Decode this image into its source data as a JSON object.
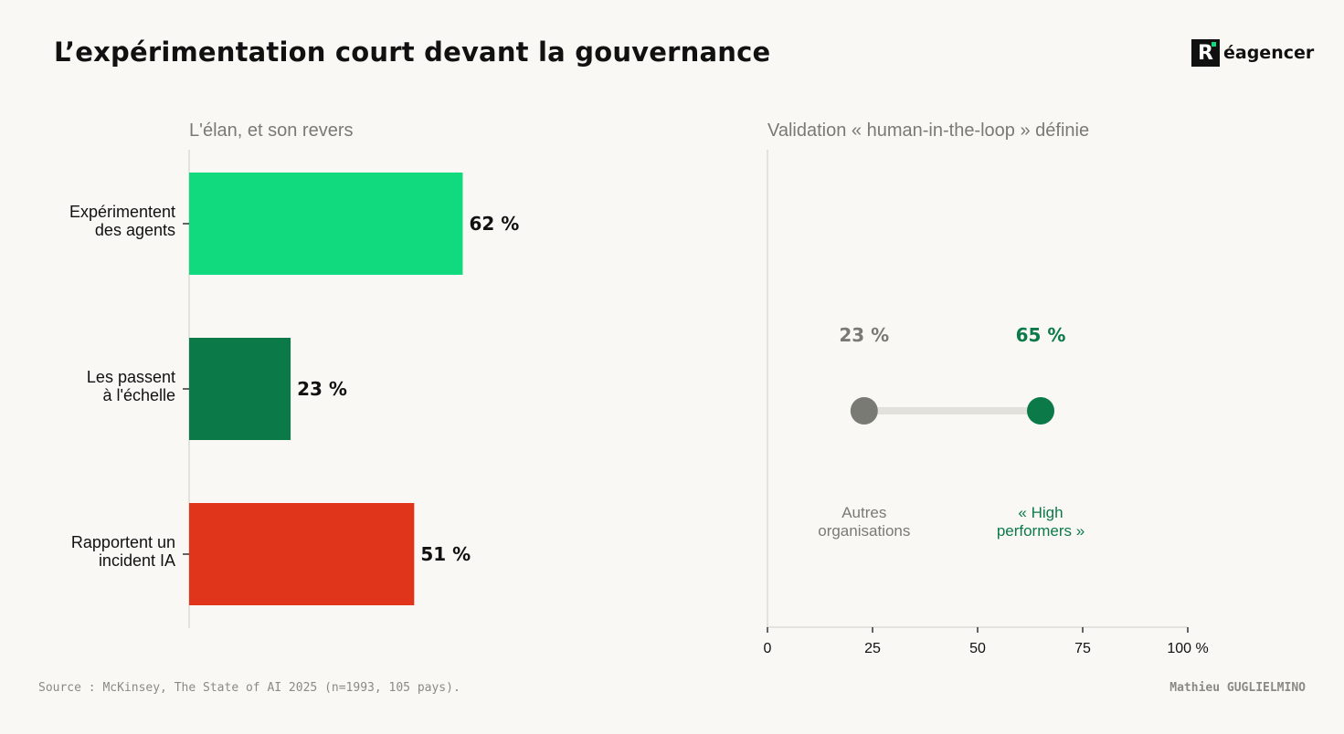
{
  "title": "L’expérimentation court devant la gouvernance",
  "brand": {
    "letter": "R",
    "text": "éagencer"
  },
  "footer": {
    "source": "Source : McKinsey, The State of AI 2025 (n=1993, 105 pays).",
    "author": "Mathieu GUGLIELMINO"
  },
  "chart_data": [
    {
      "type": "bar",
      "orientation": "horizontal",
      "title": "L'élan, et son revers",
      "categories": [
        [
          "Expérimentent",
          "des agents"
        ],
        [
          "Les passent",
          "à l'échelle"
        ],
        [
          "Rapportent un",
          "incident IA"
        ]
      ],
      "values": [
        62,
        23,
        51
      ],
      "value_labels": [
        "62 %",
        "23 %",
        "51 %"
      ],
      "colors": [
        "#10d97e",
        "#0b7a48",
        "#e0351b"
      ],
      "xlim": [
        0,
        100
      ]
    },
    {
      "type": "scatter",
      "subtype": "dumbbell",
      "title": "Validation « human-in-the-loop » définie",
      "points": [
        {
          "label": [
            "Autres",
            "organisations"
          ],
          "value": 23,
          "value_label": "23 %",
          "color": "#7a7a75"
        },
        {
          "label": [
            "« High",
            "performers »"
          ],
          "value": 65,
          "value_label": "65 %",
          "color": "#0b7a48"
        }
      ],
      "xlim": [
        0,
        100
      ],
      "xticks": [
        0,
        25,
        50,
        75,
        100
      ],
      "xtick_labels": [
        "0",
        "25",
        "50",
        "75",
        "100 %"
      ],
      "grid": false
    }
  ]
}
